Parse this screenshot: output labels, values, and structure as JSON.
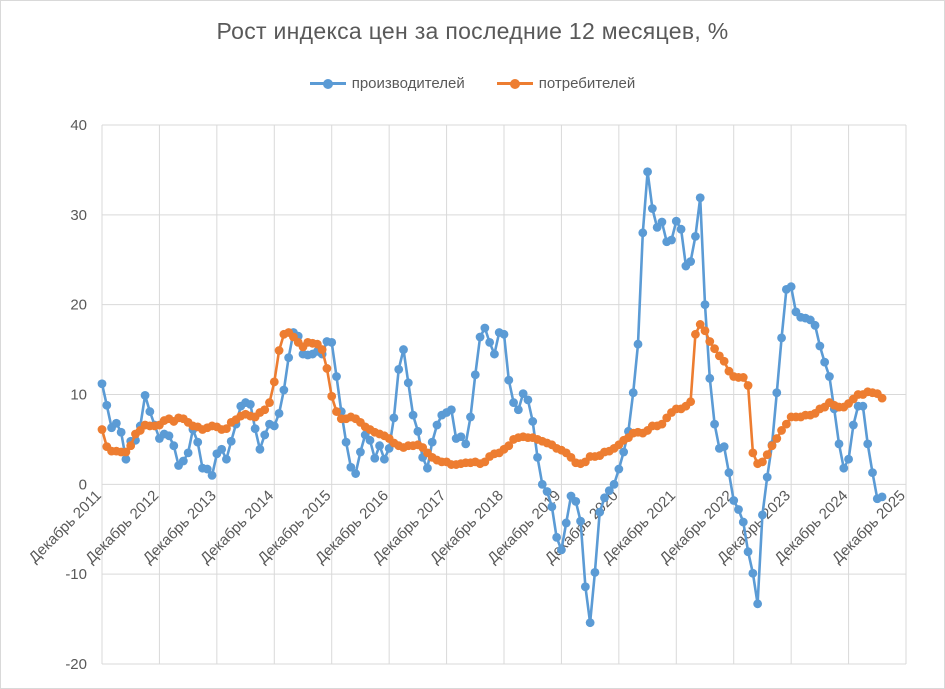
{
  "colors": {
    "producers": "#5b9bd5",
    "consumers": "#ed7d31",
    "grid": "#d9d9d9",
    "text": "#595959"
  },
  "chart_data": {
    "type": "line",
    "title": "Рост индекса цен за последние 12 месяцев, %",
    "xlabel": "",
    "ylabel": "",
    "ylim": [
      -20,
      40
    ],
    "yticks": [
      -20,
      -10,
      0,
      10,
      20,
      30,
      40
    ],
    "x_tick_labels": [
      "Декабрь 2011",
      "Декабрь 2012",
      "Декабрь 2013",
      "Декабрь 2014",
      "Декабрь 2015",
      "Декабрь 2016",
      "Декабрь 2017",
      "Декабрь 2018",
      "Декабрь 2019",
      "Декабрь 2020",
      "Декабрь 2021",
      "Декабрь 2022",
      "Декабрь 2023",
      "Декабрь 2024",
      "Декабрь 2025"
    ],
    "x_start": "2011-12",
    "grid": true,
    "legend_position": "top",
    "series": [
      {
        "name": "производителей",
        "color": "#5b9bd5",
        "values": [
          11.2,
          8.8,
          6.3,
          6.8,
          5.8,
          2.8,
          4.8,
          4.9,
          6.5,
          9.9,
          8.1,
          6.6,
          5.1,
          5.6,
          5.4,
          4.3,
          2.1,
          2.6,
          3.5,
          6.1,
          4.7,
          1.8,
          1.7,
          1.0,
          3.4,
          3.9,
          2.8,
          4.8,
          6.7,
          8.7,
          9.1,
          8.9,
          6.2,
          3.9,
          5.5,
          6.7,
          6.5,
          7.9,
          10.5,
          14.1,
          16.9,
          16.5,
          14.5,
          14.4,
          14.5,
          14.8,
          14.5,
          15.9,
          15.8,
          12.0,
          8.1,
          4.7,
          1.9,
          1.2,
          3.6,
          5.5,
          4.9,
          2.9,
          4.3,
          2.8,
          4.0,
          7.4,
          12.8,
          15.0,
          11.3,
          7.7,
          5.9,
          3.0,
          1.8,
          4.7,
          6.6,
          7.7,
          8.0,
          8.3,
          5.1,
          5.3,
          4.5,
          7.5,
          12.2,
          16.4,
          17.4,
          15.8,
          14.5,
          16.9,
          16.7,
          11.6,
          9.1,
          8.3,
          10.1,
          9.4,
          7.0,
          3.0,
          0.0,
          -0.8,
          -2.5,
          -5.9,
          -7.3,
          -4.3,
          -1.3,
          -1.9,
          -4.1,
          -11.4,
          -15.4,
          -9.8,
          -3.1,
          -1.5,
          -0.7,
          0.0,
          1.7,
          3.6,
          5.9,
          10.2,
          15.6,
          28.0,
          34.8,
          30.7,
          28.6,
          29.2,
          27.0,
          27.2,
          29.3,
          28.4,
          24.3,
          24.8,
          27.6,
          31.9,
          20.0,
          11.8,
          6.7,
          4.0,
          4.2,
          1.3,
          -1.8,
          -2.8,
          -4.2,
          -7.5,
          -9.9,
          -13.3,
          -3.4,
          0.8,
          4.4,
          10.2,
          16.3,
          21.7,
          22.0,
          19.2,
          18.6,
          18.5,
          18.3,
          17.7,
          15.4,
          13.6,
          12.0,
          8.4,
          4.5,
          1.8,
          2.8,
          6.6,
          8.7,
          8.7,
          4.5,
          1.3,
          -1.6,
          -1.4
        ]
      },
      {
        "name": "потребителей",
        "color": "#ed7d31",
        "values": [
          6.1,
          4.2,
          3.7,
          3.7,
          3.6,
          3.6,
          4.3,
          5.6,
          6.0,
          6.6,
          6.5,
          6.5,
          6.6,
          7.1,
          7.3,
          7.0,
          7.4,
          7.3,
          6.9,
          6.5,
          6.4,
          6.1,
          6.3,
          6.5,
          6.4,
          6.1,
          6.2,
          6.9,
          7.2,
          7.6,
          7.8,
          7.6,
          7.5,
          8.0,
          8.3,
          9.1,
          11.4,
          14.9,
          16.7,
          16.9,
          16.4,
          15.8,
          15.3,
          15.8,
          15.7,
          15.6,
          15.0,
          12.9,
          9.8,
          8.1,
          7.3,
          7.3,
          7.5,
          7.3,
          6.9,
          6.4,
          6.1,
          5.8,
          5.6,
          5.4,
          5.1,
          4.6,
          4.3,
          4.1,
          4.3,
          4.3,
          4.4,
          4.1,
          3.5,
          3.0,
          2.7,
          2.5,
          2.5,
          2.2,
          2.2,
          2.3,
          2.4,
          2.4,
          2.5,
          2.3,
          2.5,
          3.1,
          3.4,
          3.5,
          3.9,
          4.3,
          5.0,
          5.2,
          5.3,
          5.2,
          5.2,
          5.0,
          4.8,
          4.6,
          4.4,
          4.0,
          3.8,
          3.5,
          3.0,
          2.4,
          2.3,
          2.5,
          3.1,
          3.1,
          3.2,
          3.6,
          3.7,
          4.0,
          4.4,
          4.9,
          5.2,
          5.7,
          5.8,
          5.7,
          6.0,
          6.5,
          6.5,
          6.7,
          7.4,
          8.0,
          8.4,
          8.4,
          8.7,
          9.2,
          16.7,
          17.8,
          17.1,
          15.9,
          15.1,
          14.3,
          13.7,
          12.6,
          12.0,
          11.9,
          11.9,
          11.0,
          3.5,
          2.3,
          2.5,
          3.3,
          4.3,
          5.1,
          6.0,
          6.7,
          7.5,
          7.5,
          7.5,
          7.7,
          7.7,
          7.9,
          8.4,
          8.6,
          9.1,
          8.8,
          8.6,
          8.6,
          9.0,
          9.5,
          10.0,
          10.0,
          10.3,
          10.2,
          10.1,
          9.6
        ]
      }
    ]
  }
}
